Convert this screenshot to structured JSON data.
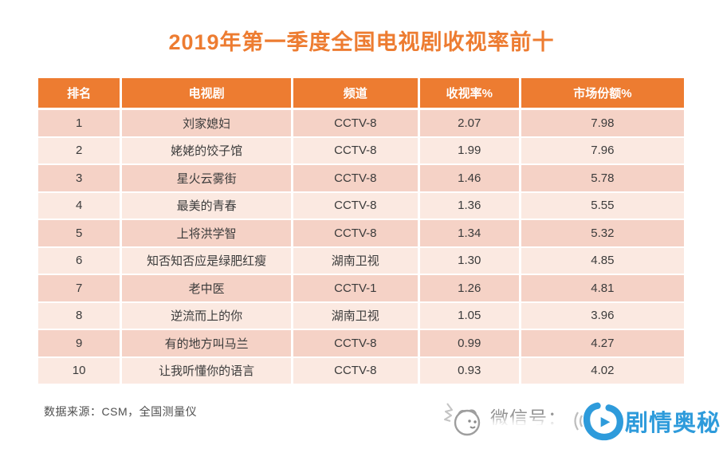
{
  "title": "2019年第一季度全国电视剧收视率前十",
  "chart_data": {
    "type": "table",
    "title": "2019年第一季度全国电视剧收视率前十",
    "columns": [
      "排名",
      "电视剧",
      "频道",
      "收视率%",
      "市场份额%"
    ],
    "rows": [
      [
        "1",
        "刘家媳妇",
        "CCTV-8",
        "2.07",
        "7.98"
      ],
      [
        "2",
        "姥姥的饺子馆",
        "CCTV-8",
        "1.99",
        "7.96"
      ],
      [
        "3",
        "星火云雾街",
        "CCTV-8",
        "1.46",
        "5.78"
      ],
      [
        "4",
        "最美的青春",
        "CCTV-8",
        "1.36",
        "5.55"
      ],
      [
        "5",
        "上将洪学智",
        "CCTV-8",
        "1.34",
        "5.32"
      ],
      [
        "6",
        "知否知否应是绿肥红瘦",
        "湖南卫视",
        "1.30",
        "4.85"
      ],
      [
        "7",
        "老中医",
        "CCTV-1",
        "1.26",
        "4.81"
      ],
      [
        "8",
        "逆流而上的你",
        "湖南卫视",
        "1.05",
        "3.96"
      ],
      [
        "9",
        "有的地方叫马兰",
        "CCTV-8",
        "0.99",
        "4.27"
      ],
      [
        "10",
        "让我听懂你的语言",
        "CCTV-8",
        "0.93",
        "4.02"
      ]
    ]
  },
  "footer": {
    "source_note": "数据来源：CSM，全国测量仪"
  },
  "watermark": {
    "wechat_label": "微信号：",
    "brand_name": "剧情奥秘"
  },
  "colors": {
    "accent_orange": "#ED7C31",
    "row_band_dark": "#F5D2C6",
    "row_band_light": "#FBE9E1",
    "brand_blue": "#2E9BDB",
    "note_gray": "#4F4F4F"
  }
}
